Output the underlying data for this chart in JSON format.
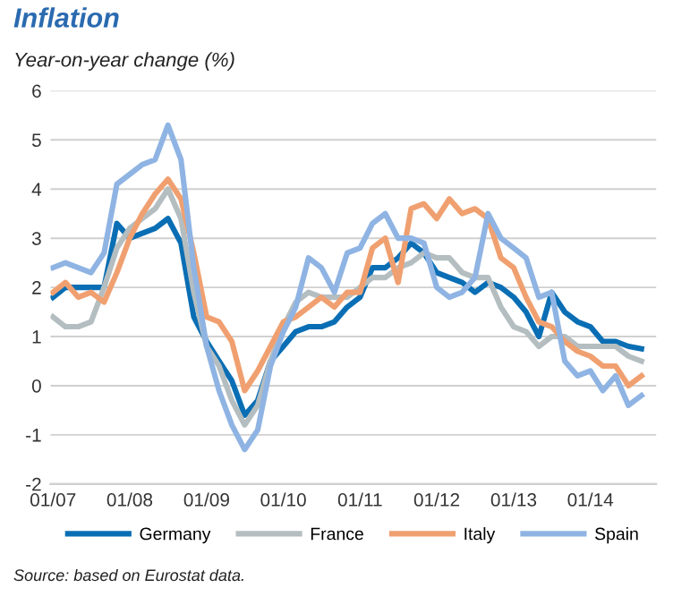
{
  "chart_data": {
    "type": "line",
    "title": "Inflation",
    "subtitle": "Year-on-year change (%)",
    "x": [
      "2007-01",
      "2007-03",
      "2007-05",
      "2007-07",
      "2007-09",
      "2007-11",
      "2008-01",
      "2008-03",
      "2008-05",
      "2008-07",
      "2008-09",
      "2008-11",
      "2009-01",
      "2009-03",
      "2009-05",
      "2009-07",
      "2009-09",
      "2009-11",
      "2010-01",
      "2010-03",
      "2010-05",
      "2010-07",
      "2010-09",
      "2010-11",
      "2011-01",
      "2011-03",
      "2011-05",
      "2011-07",
      "2011-09",
      "2011-11",
      "2012-01",
      "2012-03",
      "2012-05",
      "2012-07",
      "2012-09",
      "2012-11",
      "2013-01",
      "2013-03",
      "2013-05",
      "2013-07",
      "2013-09",
      "2013-11",
      "2014-01",
      "2014-03",
      "2014-05",
      "2014-07",
      "2014-09"
    ],
    "series": [
      {
        "name": "Germany",
        "color": "#0a6eb4",
        "values": [
          1.8,
          2.0,
          2.0,
          2.0,
          2.0,
          3.3,
          3.0,
          3.1,
          3.2,
          3.4,
          2.9,
          1.4,
          0.9,
          0.5,
          0.1,
          -0.6,
          -0.3,
          0.5,
          0.8,
          1.1,
          1.2,
          1.2,
          1.3,
          1.6,
          1.8,
          2.4,
          2.4,
          2.6,
          2.9,
          2.7,
          2.3,
          2.2,
          2.1,
          1.9,
          2.1,
          2.0,
          1.8,
          1.5,
          1.0,
          1.9,
          1.5,
          1.3,
          1.2,
          0.9,
          0.9,
          0.8,
          0.75
        ]
      },
      {
        "name": "France",
        "color": "#b4bec0",
        "values": [
          1.4,
          1.2,
          1.2,
          1.3,
          2.0,
          2.8,
          3.2,
          3.4,
          3.6,
          4.0,
          3.4,
          1.9,
          0.8,
          0.4,
          -0.3,
          -0.8,
          -0.4,
          0.5,
          1.2,
          1.7,
          1.9,
          1.8,
          1.8,
          1.8,
          2.0,
          2.2,
          2.2,
          2.4,
          2.5,
          2.7,
          2.6,
          2.6,
          2.3,
          2.2,
          2.2,
          1.6,
          1.2,
          1.1,
          0.8,
          1.0,
          1.0,
          0.8,
          0.8,
          0.8,
          0.8,
          0.6,
          0.5
        ]
      },
      {
        "name": "Italy",
        "color": "#f0a070",
        "values": [
          1.9,
          2.1,
          1.8,
          1.9,
          1.7,
          2.3,
          3.0,
          3.5,
          3.9,
          4.2,
          3.8,
          2.7,
          1.4,
          1.3,
          0.9,
          -0.1,
          0.3,
          0.8,
          1.3,
          1.4,
          1.6,
          1.8,
          1.6,
          1.9,
          1.9,
          2.8,
          3.0,
          2.1,
          3.6,
          3.7,
          3.4,
          3.8,
          3.5,
          3.6,
          3.4,
          2.6,
          2.4,
          1.8,
          1.3,
          1.2,
          0.9,
          0.7,
          0.6,
          0.4,
          0.4,
          0.0,
          0.2
        ]
      },
      {
        "name": "Spain",
        "color": "#8fb4e3",
        "values": [
          2.4,
          2.5,
          2.4,
          2.3,
          2.7,
          4.1,
          4.3,
          4.5,
          4.6,
          5.3,
          4.6,
          2.4,
          0.8,
          -0.1,
          -0.8,
          -1.3,
          -0.9,
          0.4,
          1.1,
          1.6,
          2.6,
          2.4,
          1.9,
          2.7,
          2.8,
          3.3,
          3.5,
          3.0,
          3.0,
          2.9,
          2.0,
          1.8,
          1.9,
          2.2,
          3.5,
          3.0,
          2.8,
          2.6,
          1.8,
          1.9,
          0.5,
          0.2,
          0.3,
          -0.1,
          0.2,
          -0.4,
          -0.2
        ]
      }
    ],
    "xlim": [
      "2006-12-20",
      "2014-11-10"
    ],
    "xticks": [
      {
        "value": "2007-01-01",
        "label": "01/07"
      },
      {
        "value": "2008-01-01",
        "label": "01/08"
      },
      {
        "value": "2009-01-01",
        "label": "01/09"
      },
      {
        "value": "2010-01-01",
        "label": "01/10"
      },
      {
        "value": "2011-01-01",
        "label": "01/11"
      },
      {
        "value": "2012-01-01",
        "label": "01/12"
      },
      {
        "value": "2013-01-01",
        "label": "01/13"
      },
      {
        "value": "2014-01-01",
        "label": "01/14"
      }
    ],
    "ylim": [
      -2,
      6
    ],
    "yticks": [
      -2,
      -1,
      0,
      1,
      2,
      3,
      4,
      5,
      6
    ],
    "grid": "y",
    "legend": "bottom",
    "annotations": [
      "Source: based on Eurostat data."
    ]
  }
}
